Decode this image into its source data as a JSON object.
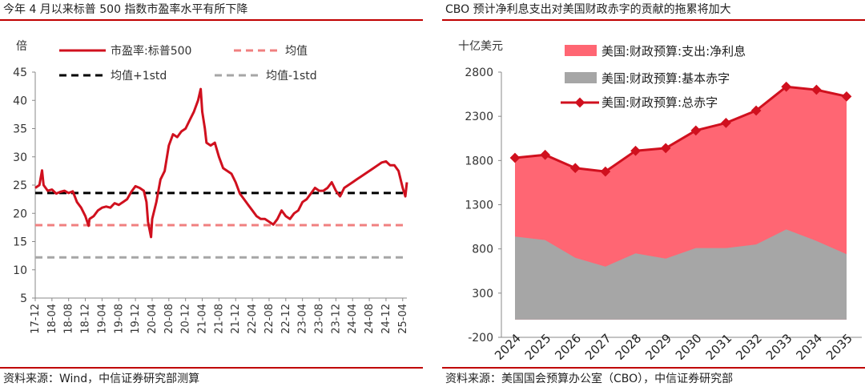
{
  "colors": {
    "accent_rule": "#c00000",
    "pe_line": "#d0101e",
    "mean_line": "#f08080",
    "plus1std_line": "#000000",
    "minus1std_line": "#a6a6a6",
    "net_interest_fill": "#ff6673",
    "primary_deficit_fill": "#a6a6a6",
    "total_deficit_line": "#d0101e"
  },
  "left": {
    "title": "今年 4 月以来标普 500 指数市盈率水平有所下降",
    "source": "资料来源：Wind，中信证券研究部测算"
  },
  "right": {
    "title": "CBO 预计净利息支出对美国财政赤字的贡献的拖累将加大",
    "source": "资料来源：美国国会预算办公室（CBO），中信证券研究部"
  },
  "chart_data": [
    {
      "type": "line",
      "ylabel": "倍",
      "ylim": [
        5,
        45
      ],
      "yticks": [
        5,
        10,
        15,
        20,
        25,
        30,
        35,
        40,
        45
      ],
      "xticks": [
        "17-12",
        "18-04",
        "18-08",
        "18-12",
        "19-04",
        "19-08",
        "19-12",
        "20-04",
        "20-08",
        "20-12",
        "21-04",
        "21-08",
        "21-12",
        "22-04",
        "22-08",
        "22-12",
        "23-04",
        "23-08",
        "23-12",
        "24-04",
        "24-08",
        "24-12",
        "25-04"
      ],
      "x_start": "2017-12",
      "x_end": "2025-05",
      "legend": [
        "市盈率:标普500",
        "均值",
        "均值+1std",
        "均值-1std"
      ],
      "series": [
        {
          "name": "市盈率:标普500",
          "x": [
            "2017-12",
            "2018-01",
            "2018-01-20",
            "2018-02",
            "2018-03",
            "2018-04",
            "2018-05",
            "2018-06",
            "2018-07",
            "2018-08",
            "2018-09",
            "2018-10",
            "2018-11",
            "2018-12",
            "2018-12-24",
            "2019-01",
            "2019-02",
            "2019-03",
            "2019-04",
            "2019-05",
            "2019-06",
            "2019-07",
            "2019-08",
            "2019-09",
            "2019-10",
            "2019-11",
            "2019-12",
            "2020-01",
            "2020-02",
            "2020-02-20",
            "2020-03",
            "2020-03-23",
            "2020-04",
            "2020-05",
            "2020-06",
            "2020-07",
            "2020-08",
            "2020-09",
            "2020-10",
            "2020-11",
            "2020-12",
            "2021-01",
            "2021-02",
            "2021-03",
            "2021-03-20",
            "2021-04",
            "2021-04-20",
            "2021-05",
            "2021-06",
            "2021-07",
            "2021-08",
            "2021-09",
            "2021-10",
            "2021-11",
            "2021-12",
            "2022-01",
            "2022-02",
            "2022-03",
            "2022-04",
            "2022-05",
            "2022-06",
            "2022-07",
            "2022-08",
            "2022-09",
            "2022-10",
            "2022-11",
            "2022-12",
            "2023-01",
            "2023-02",
            "2023-03",
            "2023-04",
            "2023-05",
            "2023-06",
            "2023-07",
            "2023-08",
            "2023-09",
            "2023-10",
            "2023-11",
            "2023-12",
            "2024-01",
            "2024-02",
            "2024-03",
            "2024-04",
            "2024-05",
            "2024-06",
            "2024-07",
            "2024-08",
            "2024-09",
            "2024-10",
            "2024-11",
            "2024-12",
            "2025-01",
            "2025-02",
            "2025-03",
            "2025-04",
            "2025-04-20",
            "2025-05"
          ],
          "values": [
            24.5,
            25.0,
            27.6,
            25.0,
            24.0,
            24.2,
            23.5,
            23.8,
            24.0,
            23.6,
            23.9,
            22.0,
            21.0,
            19.5,
            17.8,
            19.0,
            19.5,
            20.5,
            21.0,
            21.2,
            21.0,
            21.8,
            21.5,
            22.0,
            22.5,
            23.8,
            24.8,
            24.5,
            24.0,
            22.0,
            18.5,
            15.8,
            19.0,
            22.0,
            26.0,
            27.5,
            32.0,
            34.0,
            33.5,
            34.5,
            35.0,
            36.5,
            38.0,
            40.0,
            42.0,
            38.0,
            35.0,
            32.5,
            32.0,
            32.5,
            30.0,
            28.0,
            27.5,
            27.0,
            25.5,
            23.5,
            22.5,
            21.5,
            20.5,
            19.5,
            19.0,
            19.0,
            18.5,
            18.0,
            19.0,
            20.5,
            19.5,
            19.0,
            20.0,
            20.5,
            22.0,
            22.5,
            23.5,
            24.5,
            24.0,
            24.0,
            24.5,
            25.5,
            24.0,
            23.0,
            24.5,
            25.0,
            25.5,
            26.0,
            26.5,
            27.0,
            27.5,
            28.0,
            28.5,
            29.0,
            29.2,
            28.5,
            28.5,
            27.5,
            24.5,
            23.0,
            25.5
          ]
        },
        {
          "name": "均值",
          "values": [
            17.9
          ]
        },
        {
          "name": "均值+1std",
          "values": [
            23.6
          ]
        },
        {
          "name": "均值-1std",
          "values": [
            12.2
          ]
        }
      ],
      "grid": false,
      "legend_position": "top"
    },
    {
      "type": "area",
      "ylabel": "十亿美元",
      "ylim": [
        -200,
        2800
      ],
      "yticks": [
        -200,
        300,
        800,
        1300,
        1800,
        2300,
        2800
      ],
      "categories": [
        "2024",
        "2025",
        "2026",
        "2027",
        "2028",
        "2029",
        "2030",
        "2031",
        "2032",
        "2033",
        "2034",
        "2035"
      ],
      "legend": [
        "美国:财政预算:支出:净利息",
        "美国:财政预算:基本赤字",
        "美国:财政预算:总赤字"
      ],
      "series": [
        {
          "name": "美国:财政预算:支出:净利息",
          "values": [
            890,
            965,
            1015,
            1075,
            1160,
            1250,
            1330,
            1415,
            1515,
            1615,
            1710,
            1785
          ]
        },
        {
          "name": "美国:财政预算:基本赤字",
          "values": [
            940,
            900,
            700,
            600,
            750,
            690,
            810,
            810,
            850,
            1020,
            890,
            740
          ]
        },
        {
          "name": "美国:财政预算:总赤字",
          "values": [
            1830,
            1865,
            1715,
            1675,
            1910,
            1940,
            2140,
            2225,
            2365,
            2635,
            2600,
            2525
          ]
        }
      ],
      "grid": false,
      "legend_position": "top"
    }
  ]
}
